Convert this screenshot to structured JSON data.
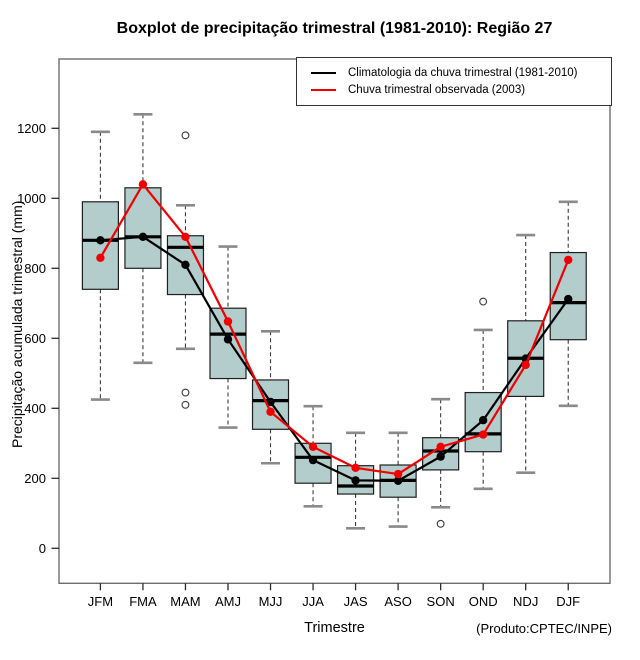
{
  "figure": {
    "title": "Boxplot de precipitação trimestral (1981-2010): Região 27",
    "x_label": "Trimestre",
    "y_label": "Precipitação acumulada trimestral (mm)",
    "caption": "(Produto:CPTEC/INPE)"
  },
  "legend": {
    "items": [
      {
        "label": "Climatologia da chuva trimestral (1981-2010)",
        "color": "#000000"
      },
      {
        "label": "Chuva trimestral observada (2003)",
        "color": "#f20000"
      }
    ]
  },
  "chart_data": {
    "type": "boxplot+line",
    "title": "Boxplot de precipitação trimestral (1981-2010): Região 27",
    "xlabel": "Trimestre",
    "ylabel": "Precipitação acumulada trimestral (mm)",
    "categories": [
      "JFM",
      "FMA",
      "MAM",
      "AMJ",
      "MJJ",
      "JJA",
      "JAS",
      "ASO",
      "SON",
      "OND",
      "NDJ",
      "DJF"
    ],
    "y_ticks": [
      0,
      200,
      400,
      600,
      800,
      1000,
      1200
    ],
    "ylim": [
      -100,
      1430
    ],
    "grid": false,
    "legend_position": "top-right",
    "boxes": [
      {
        "q": "JFM",
        "lo": 425,
        "q1": 740,
        "med": 880,
        "q3": 990,
        "hi": 1190,
        "out": []
      },
      {
        "q": "FMA",
        "lo": 530,
        "q1": 800,
        "med": 890,
        "q3": 1030,
        "hi": 1240,
        "out": []
      },
      {
        "q": "MAM",
        "lo": 570,
        "q1": 725,
        "med": 860,
        "q3": 893,
        "hi": 980,
        "out": [
          1180,
          445,
          410
        ]
      },
      {
        "q": "AMJ",
        "lo": 345,
        "q1": 485,
        "med": 612,
        "q3": 686,
        "hi": 862,
        "out": []
      },
      {
        "q": "MJJ",
        "lo": 243,
        "q1": 340,
        "med": 422,
        "q3": 481,
        "hi": 620,
        "out": []
      },
      {
        "q": "JJA",
        "lo": 120,
        "q1": 186,
        "med": 260,
        "q3": 300,
        "hi": 406,
        "out": []
      },
      {
        "q": "JAS",
        "lo": 57,
        "q1": 155,
        "med": 178,
        "q3": 236,
        "hi": 330,
        "out": []
      },
      {
        "q": "ASO",
        "lo": 62,
        "q1": 146,
        "med": 194,
        "q3": 238,
        "hi": 330,
        "out": []
      },
      {
        "q": "SON",
        "lo": 117,
        "q1": 224,
        "med": 278,
        "q3": 316,
        "hi": 426,
        "out": [
          70
        ]
      },
      {
        "q": "OND",
        "lo": 170,
        "q1": 276,
        "med": 327,
        "q3": 445,
        "hi": 624,
        "out": [
          705
        ]
      },
      {
        "q": "NDJ",
        "lo": 216,
        "q1": 434,
        "med": 543,
        "q3": 650,
        "hi": 895,
        "out": []
      },
      {
        "q": "DJF",
        "lo": 407,
        "q1": 596,
        "med": 702,
        "q3": 845,
        "hi": 990,
        "out": []
      }
    ],
    "series": [
      {
        "name": "Climatologia da chuva trimestral (1981-2010)",
        "color": "#000000",
        "values": [
          880,
          890,
          810,
          597,
          418,
          252,
          194,
          193,
          262,
          366,
          542,
          712
        ]
      },
      {
        "name": "Chuva trimestral observada (2003)",
        "color": "#f20000",
        "values": [
          830,
          1040,
          890,
          648,
          390,
          290,
          230,
          212,
          290,
          325,
          524,
          824
        ]
      }
    ],
    "colors": {
      "box_fill": "#b3cccc",
      "box_border": "#1f1f1f",
      "median": "#000000",
      "whisker": "#3c3c3c",
      "staple": "#8a8a8a",
      "outlier": "#3c3c3c",
      "frame": "#6e6e6e",
      "tick": "#2b2b2b",
      "text": "#000000"
    }
  }
}
